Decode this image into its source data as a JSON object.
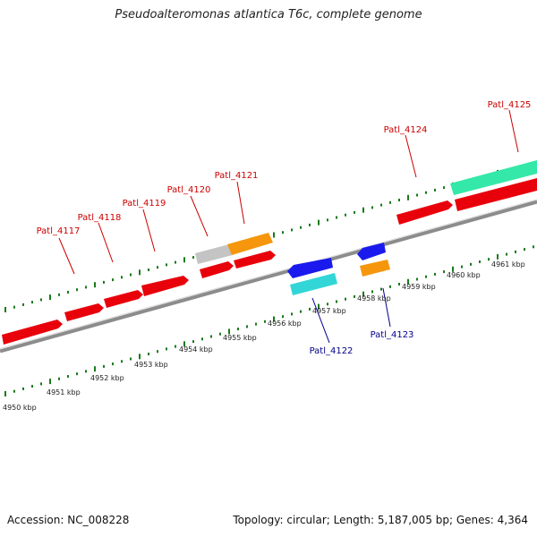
{
  "title": "Pseudoalteromonas atlantica T6c, complete genome",
  "footer": {
    "accession": "Accession: NC_008228",
    "summary": "Topology: circular; Length: 5,187,005 bp; Genes: 4,364"
  },
  "colors": {
    "forward_gene": "#e8000b",
    "reverse_gene": "#1a1aee",
    "cyan_gene": "#33d6d6",
    "orange_gene": "#f5960c",
    "grey_gene": "#c4c4c4",
    "teal_gene": "#33e8a8",
    "backbone": "#8c8c8c",
    "ticks": "#1a7a1a",
    "forward_label": "#cc0000",
    "reverse_label": "#00008b"
  },
  "ruler": [
    "4950 kbp",
    "4951 kbp",
    "4952 kbp",
    "4953 kbp",
    "4954 kbp",
    "4955 kbp",
    "4956 kbp",
    "4957 kbp",
    "4958 kbp",
    "4959 kbp",
    "4960 kbp",
    "4961 kbp"
  ],
  "forward_labels": [
    "Patl_4117",
    "Patl_4118",
    "Patl_4119",
    "Patl_4120",
    "Patl_4121",
    "Patl_4124",
    "Patl_4125"
  ],
  "reverse_labels": [
    "Patl_4122",
    "Patl_4123"
  ]
}
